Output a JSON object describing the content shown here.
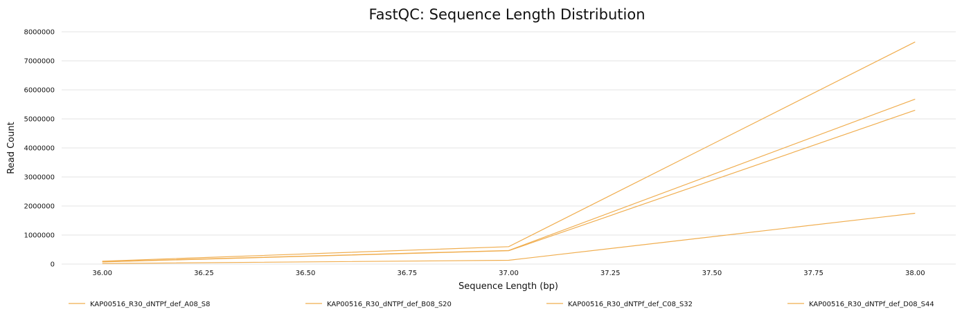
{
  "chart_data": {
    "type": "line",
    "title": "FastQC: Sequence Length Distribution",
    "xlabel": "Sequence Length (bp)",
    "ylabel": "Read Count",
    "xlim": [
      35.9,
      38.1
    ],
    "ylim": [
      0,
      8000000
    ],
    "x_ticks": [
      "36.00",
      "36.25",
      "36.50",
      "36.75",
      "37.00",
      "37.25",
      "37.50",
      "37.75",
      "38.00"
    ],
    "y_ticks": [
      "0",
      "1000000",
      "2000000",
      "3000000",
      "4000000",
      "5000000",
      "6000000",
      "7000000",
      "8000000"
    ],
    "grid": "horizontal",
    "legend_position": "bottom",
    "series_color": "#f0ad4e",
    "series": [
      {
        "name": "KAP00516_R30_dNTPf_def_A08_S8",
        "x": [
          36,
          37,
          38
        ],
        "values": [
          100000,
          600000,
          7650000
        ]
      },
      {
        "name": "KAP00516_R30_dNTPf_def_B08_S20",
        "x": [
          36,
          37,
          38
        ],
        "values": [
          80000,
          470000,
          5680000
        ]
      },
      {
        "name": "KAP00516_R30_dNTPf_def_C08_S32",
        "x": [
          36,
          37,
          38
        ],
        "values": [
          75000,
          460000,
          5300000
        ]
      },
      {
        "name": "KAP00516_R30_dNTPf_def_D08_S44",
        "x": [
          36,
          37,
          38
        ],
        "values": [
          20000,
          130000,
          1750000
        ]
      }
    ]
  }
}
